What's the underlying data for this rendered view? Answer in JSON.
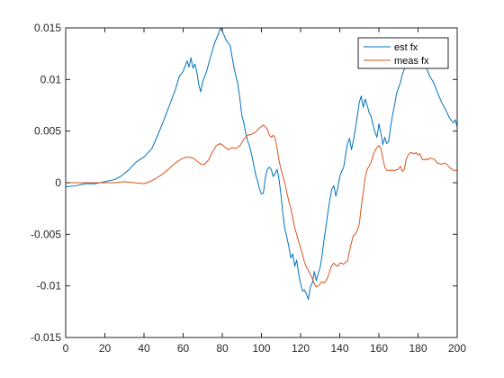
{
  "chart_data": {
    "type": "line",
    "title": "",
    "xlabel": "",
    "ylabel": "",
    "xlim": [
      0,
      200
    ],
    "ylim": [
      -0.015,
      0.015
    ],
    "x_ticks": [
      0,
      20,
      40,
      60,
      80,
      100,
      120,
      140,
      160,
      180,
      200
    ],
    "y_ticks": [
      -0.015,
      -0.01,
      -0.005,
      0,
      0.005,
      0.01,
      0.015
    ],
    "x_tick_labels": [
      "0",
      "20",
      "40",
      "60",
      "80",
      "100",
      "120",
      "140",
      "160",
      "180",
      "200"
    ],
    "y_tick_labels": [
      "-0.015",
      "-0.01",
      "-0.005",
      "0",
      "0.005",
      "0.01",
      "0.015"
    ],
    "grid": false,
    "box": true,
    "legend": {
      "position": "top-right"
    },
    "series": [
      {
        "name": "est fx",
        "color": "#0072BD",
        "points": [
          [
            0,
            -0.0004
          ],
          [
            5,
            -0.0003
          ],
          [
            10,
            -0.0001
          ],
          [
            15,
            -0.0001
          ],
          [
            20,
            0.0001
          ],
          [
            25,
            0.0003
          ],
          [
            28,
            0.0006
          ],
          [
            32,
            0.0012
          ],
          [
            36,
            0.002
          ],
          [
            40,
            0.0025
          ],
          [
            44,
            0.0033
          ],
          [
            47,
            0.0046
          ],
          [
            50,
            0.006
          ],
          [
            53,
            0.0075
          ],
          [
            56,
            0.009
          ],
          [
            58,
            0.0103
          ],
          [
            60,
            0.0108
          ],
          [
            62,
            0.0118
          ],
          [
            63,
            0.0112
          ],
          [
            64,
            0.0121
          ],
          [
            65,
            0.0111
          ],
          [
            66,
            0.0115
          ],
          [
            67,
            0.0107
          ],
          [
            68,
            0.0095
          ],
          [
            69,
            0.0088
          ],
          [
            70,
            0.0098
          ],
          [
            72,
            0.0108
          ],
          [
            74,
            0.0122
          ],
          [
            76,
            0.0135
          ],
          [
            78,
            0.0144
          ],
          [
            79,
            0.015
          ],
          [
            80,
            0.0147
          ],
          [
            82,
            0.0138
          ],
          [
            84,
            0.0133
          ],
          [
            85,
            0.0122
          ],
          [
            86,
            0.0111
          ],
          [
            88,
            0.0095
          ],
          [
            89,
            0.0081
          ],
          [
            90,
            0.0065
          ],
          [
            91,
            0.0058
          ],
          [
            92,
            0.0048
          ],
          [
            93,
            0.004
          ],
          [
            94,
            0.0035
          ],
          [
            95,
            0.0027
          ],
          [
            96,
            0.0018
          ],
          [
            97,
            0.0008
          ],
          [
            98,
            0.0002
          ],
          [
            99,
            -0.0006
          ],
          [
            100,
            -0.0011
          ],
          [
            101,
            -0.001
          ],
          [
            102,
            0.0005
          ],
          [
            103,
            0.0013
          ],
          [
            104,
            0.0015
          ],
          [
            105,
            0.0013
          ],
          [
            106,
            0.0006
          ],
          [
            107,
            0.0009
          ],
          [
            108,
            0.0013
          ],
          [
            109,
            0.0003
          ],
          [
            110,
            -0.0012
          ],
          [
            111,
            -0.0031
          ],
          [
            112,
            -0.0045
          ],
          [
            113,
            -0.0053
          ],
          [
            114,
            -0.0062
          ],
          [
            115,
            -0.0073
          ],
          [
            116,
            -0.0069
          ],
          [
            117,
            -0.0081
          ],
          [
            118,
            -0.0075
          ],
          [
            119,
            -0.0088
          ],
          [
            120,
            -0.0098
          ],
          [
            121,
            -0.0105
          ],
          [
            122,
            -0.0104
          ],
          [
            123,
            -0.0108
          ],
          [
            124,
            -0.0113
          ],
          [
            125,
            -0.0101
          ],
          [
            126,
            -0.0097
          ],
          [
            127,
            -0.0086
          ],
          [
            128,
            -0.0095
          ],
          [
            129,
            -0.0088
          ],
          [
            130,
            -0.0082
          ],
          [
            131,
            -0.007
          ],
          [
            132,
            -0.0055
          ],
          [
            133,
            -0.0042
          ],
          [
            134,
            -0.0028
          ],
          [
            135,
            -0.0016
          ],
          [
            136,
            -0.0006
          ],
          [
            137,
            -0.0003
          ],
          [
            138,
            -0.0013
          ],
          [
            139,
            -0.0005
          ],
          [
            140,
            0.0006
          ],
          [
            141,
            0.0011
          ],
          [
            142,
            0.0015
          ],
          [
            143,
            0.0027
          ],
          [
            144,
            0.0038
          ],
          [
            145,
            0.0043
          ],
          [
            146,
            0.0032
          ],
          [
            147,
            0.0041
          ],
          [
            148,
            0.0052
          ],
          [
            149,
            0.0065
          ],
          [
            150,
            0.0078
          ],
          [
            151,
            0.0084
          ],
          [
            152,
            0.0073
          ],
          [
            153,
            0.0081
          ],
          [
            154,
            0.0075
          ],
          [
            155,
            0.0068
          ],
          [
            156,
            0.0064
          ],
          [
            157,
            0.0056
          ],
          [
            158,
            0.0049
          ],
          [
            159,
            0.0044
          ],
          [
            160,
            0.0057
          ],
          [
            161,
            0.0048
          ],
          [
            162,
            0.0037
          ],
          [
            163,
            0.0044
          ],
          [
            164,
            0.0038
          ],
          [
            165,
            0.004
          ],
          [
            166,
            0.0054
          ],
          [
            167,
            0.0066
          ],
          [
            168,
            0.0075
          ],
          [
            169,
            0.0086
          ],
          [
            170,
            0.0092
          ],
          [
            171,
            0.0097
          ],
          [
            172,
            0.0105
          ],
          [
            173,
            0.011
          ],
          [
            174,
            0.0118
          ],
          [
            175,
            0.0126
          ],
          [
            176,
            0.0131
          ],
          [
            177,
            0.0135
          ],
          [
            178,
            0.0137
          ],
          [
            179,
            0.0134
          ],
          [
            180,
            0.0128
          ],
          [
            181,
            0.0121
          ],
          [
            182,
            0.0114
          ],
          [
            183,
            0.0117
          ],
          [
            184,
            0.0112
          ],
          [
            185,
            0.0108
          ],
          [
            186,
            0.0103
          ],
          [
            188,
            0.0097
          ],
          [
            190,
            0.0087
          ],
          [
            192,
            0.0078
          ],
          [
            194,
            0.0071
          ],
          [
            196,
            0.0063
          ],
          [
            198,
            0.0058
          ],
          [
            199,
            0.0061
          ],
          [
            200,
            0.0054
          ]
        ]
      },
      {
        "name": "meas fx",
        "color": "#D95319",
        "points": [
          [
            0,
            0.0
          ],
          [
            10,
            0.0
          ],
          [
            20,
            0.0
          ],
          [
            25,
            0.0
          ],
          [
            30,
            0.0001
          ],
          [
            35,
            0.0
          ],
          [
            40,
            -0.0001
          ],
          [
            43,
            0.0001
          ],
          [
            46,
            0.0004
          ],
          [
            50,
            0.0009
          ],
          [
            53,
            0.0014
          ],
          [
            56,
            0.0019
          ],
          [
            59,
            0.0023
          ],
          [
            62,
            0.0025
          ],
          [
            65,
            0.0024
          ],
          [
            67,
            0.0021
          ],
          [
            69,
            0.0018
          ],
          [
            71,
            0.0018
          ],
          [
            73,
            0.0022
          ],
          [
            75,
            0.003
          ],
          [
            77,
            0.0036
          ],
          [
            79,
            0.0038
          ],
          [
            81,
            0.0035
          ],
          [
            83,
            0.0032
          ],
          [
            85,
            0.0034
          ],
          [
            87,
            0.0033
          ],
          [
            89,
            0.0036
          ],
          [
            91,
            0.0042
          ],
          [
            93,
            0.0046
          ],
          [
            95,
            0.0047
          ],
          [
            97,
            0.0049
          ],
          [
            99,
            0.0053
          ],
          [
            101,
            0.0056
          ],
          [
            103,
            0.0052
          ],
          [
            104,
            0.0046
          ],
          [
            105,
            0.0044
          ],
          [
            106,
            0.0046
          ],
          [
            107,
            0.0043
          ],
          [
            108,
            0.0033
          ],
          [
            109,
            0.0021
          ],
          [
            110,
            0.0013
          ],
          [
            111,
            0.0006
          ],
          [
            112,
            -0.0001
          ],
          [
            113,
            -0.001
          ],
          [
            114,
            -0.0018
          ],
          [
            115,
            -0.0025
          ],
          [
            116,
            -0.0034
          ],
          [
            117,
            -0.0044
          ],
          [
            118,
            -0.005
          ],
          [
            119,
            -0.0057
          ],
          [
            120,
            -0.0063
          ],
          [
            121,
            -0.007
          ],
          [
            122,
            -0.0077
          ],
          [
            123,
            -0.0082
          ],
          [
            124,
            -0.0085
          ],
          [
            125,
            -0.0089
          ],
          [
            126,
            -0.0093
          ],
          [
            127,
            -0.0098
          ],
          [
            128,
            -0.0101
          ],
          [
            129,
            -0.01
          ],
          [
            130,
            -0.0098
          ],
          [
            131,
            -0.0096
          ],
          [
            132,
            -0.0097
          ],
          [
            133,
            -0.0095
          ],
          [
            134,
            -0.0091
          ],
          [
            135,
            -0.0085
          ],
          [
            136,
            -0.008
          ],
          [
            137,
            -0.0078
          ],
          [
            138,
            -0.008
          ],
          [
            139,
            -0.0081
          ],
          [
            140,
            -0.0078
          ],
          [
            141,
            -0.0078
          ],
          [
            142,
            -0.0079
          ],
          [
            143,
            -0.0077
          ],
          [
            144,
            -0.0076
          ],
          [
            145,
            -0.0066
          ],
          [
            146,
            -0.0058
          ],
          [
            147,
            -0.0051
          ],
          [
            148,
            -0.005
          ],
          [
            149,
            -0.0046
          ],
          [
            150,
            -0.004
          ],
          [
            151,
            -0.0023
          ],
          [
            152,
            -0.0009
          ],
          [
            153,
            0.0005
          ],
          [
            154,
            0.0013
          ],
          [
            155,
            0.0016
          ],
          [
            156,
            0.002
          ],
          [
            157,
            0.0026
          ],
          [
            158,
            0.0031
          ],
          [
            159,
            0.0034
          ],
          [
            160,
            0.0036
          ],
          [
            161,
            0.0033
          ],
          [
            162,
            0.0024
          ],
          [
            163,
            0.0015
          ],
          [
            164,
            0.0012
          ],
          [
            166,
            0.0012
          ],
          [
            168,
            0.0012
          ],
          [
            170,
            0.0013
          ],
          [
            171,
            0.0016
          ],
          [
            172,
            0.0011
          ],
          [
            173,
            0.0013
          ],
          [
            174,
            0.0023
          ],
          [
            175,
            0.0027
          ],
          [
            176,
            0.0029
          ],
          [
            177,
            0.0029
          ],
          [
            178,
            0.0028
          ],
          [
            179,
            0.0029
          ],
          [
            180,
            0.0027
          ],
          [
            181,
            0.0028
          ],
          [
            182,
            0.0023
          ],
          [
            183,
            0.0022
          ],
          [
            184,
            0.0023
          ],
          [
            185,
            0.0022
          ],
          [
            186,
            0.0024
          ],
          [
            188,
            0.0023
          ],
          [
            190,
            0.0019
          ],
          [
            192,
            0.0018
          ],
          [
            194,
            0.0019
          ],
          [
            196,
            0.0015
          ],
          [
            198,
            0.0012
          ],
          [
            200,
            0.0012
          ]
        ]
      }
    ]
  }
}
